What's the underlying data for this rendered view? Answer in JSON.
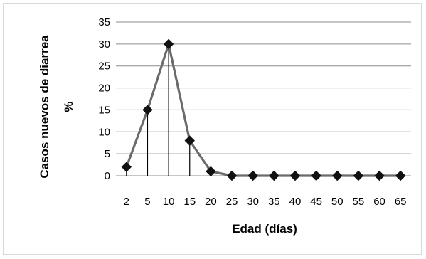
{
  "chart_data": {
    "type": "line",
    "xlabel": "Edad (días)",
    "ylabel_line1": "Casos nuevos de diarrea",
    "ylabel_line2": "%",
    "categories": [
      "2",
      "5",
      "10",
      "15",
      "20",
      "25",
      "30",
      "35",
      "40",
      "45",
      "50",
      "55",
      "60",
      "65"
    ],
    "values": [
      2,
      15,
      30,
      8,
      1,
      0,
      0,
      0,
      0,
      0,
      0,
      0,
      0,
      0
    ],
    "ylim": [
      0,
      35
    ],
    "yticks": [
      0,
      5,
      10,
      15,
      20,
      25,
      30,
      35
    ],
    "grid": true,
    "drop_lines": true,
    "marker": "diamond",
    "colors": {
      "line": "#6b6b6b",
      "marker": "#111111",
      "grid": "#8c8c8c",
      "drop": "#000000"
    }
  }
}
